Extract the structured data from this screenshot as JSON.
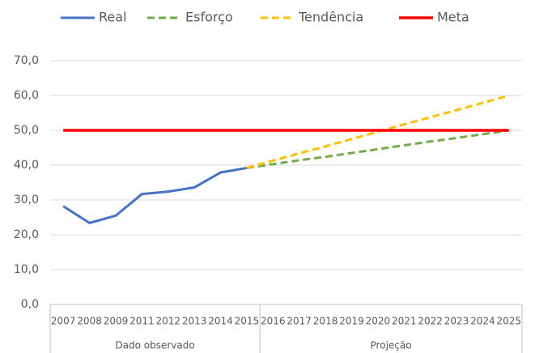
{
  "chart_data": {
    "type": "line",
    "categories": [
      "2007",
      "2008",
      "2009",
      "2011",
      "2012",
      "2013",
      "2014",
      "2015",
      "2016",
      "2017",
      "2018",
      "2019",
      "2020",
      "2021",
      "2022",
      "2023",
      "2024",
      "2025"
    ],
    "category_groups": [
      {
        "label": "Dado observado",
        "count": 8
      },
      {
        "label": "Projeção",
        "count": 10
      }
    ],
    "series": [
      {
        "name": "Real",
        "color": "#4472c4",
        "dash": false,
        "values": [
          28.2,
          23.4,
          25.5,
          31.7,
          32.4,
          33.6,
          37.9,
          39.2,
          null,
          null,
          null,
          null,
          null,
          null,
          null,
          null,
          null,
          null
        ]
      },
      {
        "name": "Esforço",
        "color": "#70ad47",
        "dash": true,
        "values": [
          null,
          null,
          null,
          null,
          null,
          null,
          null,
          39.2,
          40.3,
          41.4,
          42.4,
          43.5,
          44.6,
          45.7,
          46.8,
          47.8,
          48.9,
          50.0
        ]
      },
      {
        "name": "Tendência",
        "color": "#ffc000",
        "dash": true,
        "values": [
          null,
          null,
          null,
          null,
          null,
          null,
          null,
          39.2,
          41.3,
          43.4,
          45.4,
          47.5,
          49.6,
          51.7,
          53.8,
          55.8,
          57.9,
          60.0
        ]
      },
      {
        "name": "Meta",
        "color": "#ff0000",
        "dash": false,
        "values": [
          50,
          50,
          50,
          50,
          50,
          50,
          50,
          50,
          50,
          50,
          50,
          50,
          50,
          50,
          50,
          50,
          50,
          50
        ]
      }
    ],
    "ylim": [
      0,
      70
    ],
    "yticks": [
      {
        "value": 0,
        "label": "0,0"
      },
      {
        "value": 10,
        "label": "10,0"
      },
      {
        "value": 20,
        "label": "20,0"
      },
      {
        "value": 30,
        "label": "30,0"
      },
      {
        "value": 40,
        "label": "40,0"
      },
      {
        "value": 50,
        "label": "50,0"
      },
      {
        "value": 60,
        "label": "60,0"
      },
      {
        "value": 70,
        "label": "70,0"
      }
    ],
    "grid": true,
    "legend": "top"
  }
}
